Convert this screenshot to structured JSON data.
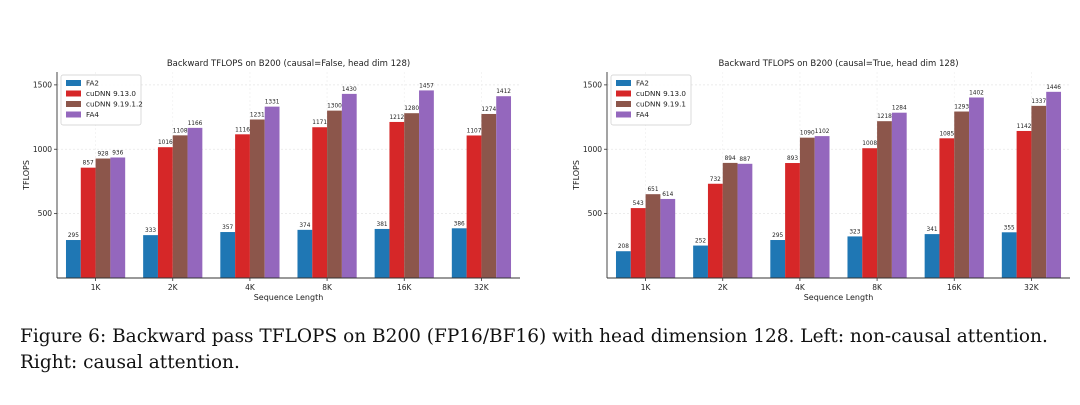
{
  "colors": [
    "#1f77b4",
    "#d62728",
    "#8c564b",
    "#9467bd"
  ],
  "caption": "Figure 6: Backward pass TFLOPS on B200 (FP16/BF16) with head dimension 128. Left: non-causal attention. Right: causal attention.",
  "chart_data": [
    {
      "type": "bar",
      "title": "Backward TFLOPS on B200 (causal=False, head dim 128)",
      "xlabel": "Sequence Length",
      "ylabel": "TFLOPS",
      "ylim": [
        0,
        1600
      ],
      "yticks": [
        500,
        1000,
        1500
      ],
      "grid": true,
      "legend": "top-left",
      "categories": [
        "1K",
        "2K",
        "4K",
        "8K",
        "16K",
        "32K"
      ],
      "series": [
        {
          "name": "FA2",
          "values": [
            295,
            333,
            357,
            374,
            381,
            386
          ]
        },
        {
          "name": "cuDNN 9.13.0",
          "values": [
            857,
            1016,
            1116,
            1171,
            1212,
            1107
          ]
        },
        {
          "name": "cuDNN 9.19.1.2",
          "values": [
            928,
            1108,
            1231,
            1300,
            1280,
            1274
          ]
        },
        {
          "name": "FA4",
          "values": [
            936,
            1166,
            1331,
            1430,
            1457,
            1412
          ]
        }
      ]
    },
    {
      "type": "bar",
      "title": "Backward TFLOPS on B200 (causal=True, head dim 128)",
      "xlabel": "Sequence Length",
      "ylabel": "TFLOPS",
      "ylim": [
        0,
        1600
      ],
      "yticks": [
        500,
        1000,
        1500
      ],
      "grid": true,
      "legend": "top-left",
      "categories": [
        "1K",
        "2K",
        "4K",
        "8K",
        "16K",
        "32K"
      ],
      "series": [
        {
          "name": "FA2",
          "values": [
            208,
            252,
            295,
            323,
            341,
            355
          ]
        },
        {
          "name": "cuDNN 9.13.0",
          "values": [
            543,
            732,
            893,
            1008,
            1085,
            1142
          ]
        },
        {
          "name": "cuDNN 9.19.1",
          "values": [
            651,
            894,
            1090,
            1218,
            1293,
            1337
          ]
        },
        {
          "name": "FA4",
          "values": [
            614,
            887,
            1102,
            1284,
            1402,
            1446
          ]
        }
      ]
    }
  ]
}
